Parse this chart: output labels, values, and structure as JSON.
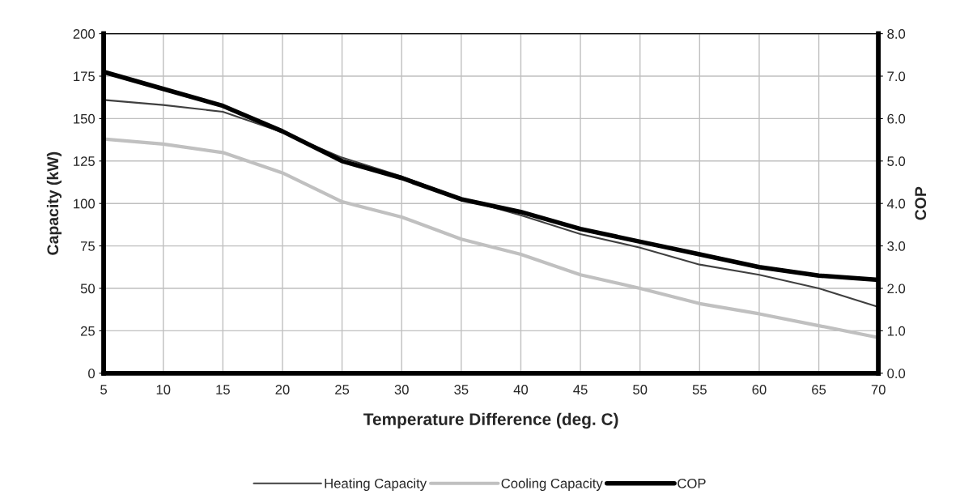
{
  "chart_data": {
    "type": "line",
    "xlabel": "Temperature Difference (deg. C)",
    "ylabel": "Capacity (kW)",
    "y2label": "COP",
    "x": [
      5,
      10,
      15,
      20,
      25,
      30,
      35,
      40,
      45,
      50,
      55,
      60,
      65,
      70
    ],
    "series": [
      {
        "name": "Heating Capacity",
        "color": "#404040",
        "values": [
          161,
          158,
          154,
          142,
          127,
          116,
          103,
          93,
          82,
          74,
          64,
          58,
          50,
          39
        ]
      },
      {
        "name": "Cooling Capacity",
        "color": "#c0c0c0",
        "values": [
          138,
          135,
          130,
          118,
          101,
          92,
          79,
          70,
          58,
          50,
          41,
          35,
          28,
          21
        ]
      },
      {
        "name": "COP",
        "color": "#000000",
        "axis": "y2",
        "values": [
          7.1,
          6.7,
          6.3,
          5.7,
          5.0,
          4.6,
          4.1,
          3.8,
          3.4,
          3.1,
          2.8,
          2.5,
          2.3,
          2.2
        ]
      }
    ],
    "xlim": [
      5,
      70
    ],
    "xticks": [
      5,
      10,
      15,
      20,
      25,
      30,
      35,
      40,
      45,
      50,
      55,
      60,
      65,
      70
    ],
    "ylim": [
      0,
      200
    ],
    "yticks": [
      0,
      25,
      50,
      75,
      100,
      125,
      150,
      175,
      200
    ],
    "y2lim": [
      0,
      8
    ],
    "y2ticks": [
      {
        "value": 0,
        "label": "0.0"
      },
      {
        "value": 1,
        "label": "1.0"
      },
      {
        "value": 2,
        "label": "2.0"
      },
      {
        "value": 3,
        "label": "3.0"
      },
      {
        "value": 4,
        "label": "4.0"
      },
      {
        "value": 5,
        "label": "5.0"
      },
      {
        "value": 6,
        "label": "6.0"
      },
      {
        "value": 7,
        "label": "7.0"
      },
      {
        "value": 8,
        "label": "8.0"
      }
    ],
    "grid": true,
    "legend": "bottom",
    "line_style": "solid"
  }
}
